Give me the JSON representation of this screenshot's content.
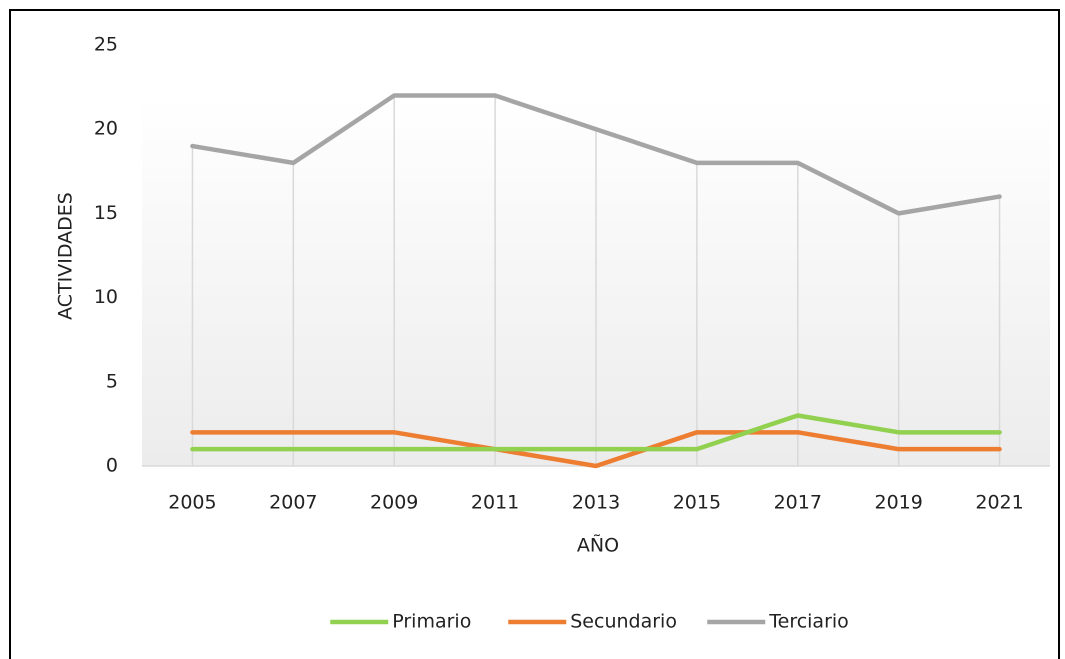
{
  "chart_data": {
    "type": "line",
    "x_label": "AÑO",
    "y_label": "ACTIVIDADES",
    "categories": [
      "2005",
      "2007",
      "2009",
      "2011",
      "2013",
      "2015",
      "2017",
      "2019",
      "2021"
    ],
    "series": [
      {
        "name": "Primario",
        "color": "#92d050",
        "values": [
          1,
          1,
          1,
          1,
          1,
          1,
          3,
          2,
          2
        ]
      },
      {
        "name": "Secundario",
        "color": "#ed7d31",
        "values": [
          2,
          2,
          2,
          1,
          0,
          2,
          2,
          1,
          1
        ]
      },
      {
        "name": "Terciario",
        "color": "#a5a5a5",
        "values": [
          19,
          18,
          22,
          22,
          20,
          18,
          18,
          15,
          16
        ]
      }
    ],
    "ylim": [
      0,
      25
    ],
    "yticks": [
      0,
      5,
      10,
      15,
      20,
      25
    ],
    "drop_lines": true,
    "legend": "bottom"
  }
}
